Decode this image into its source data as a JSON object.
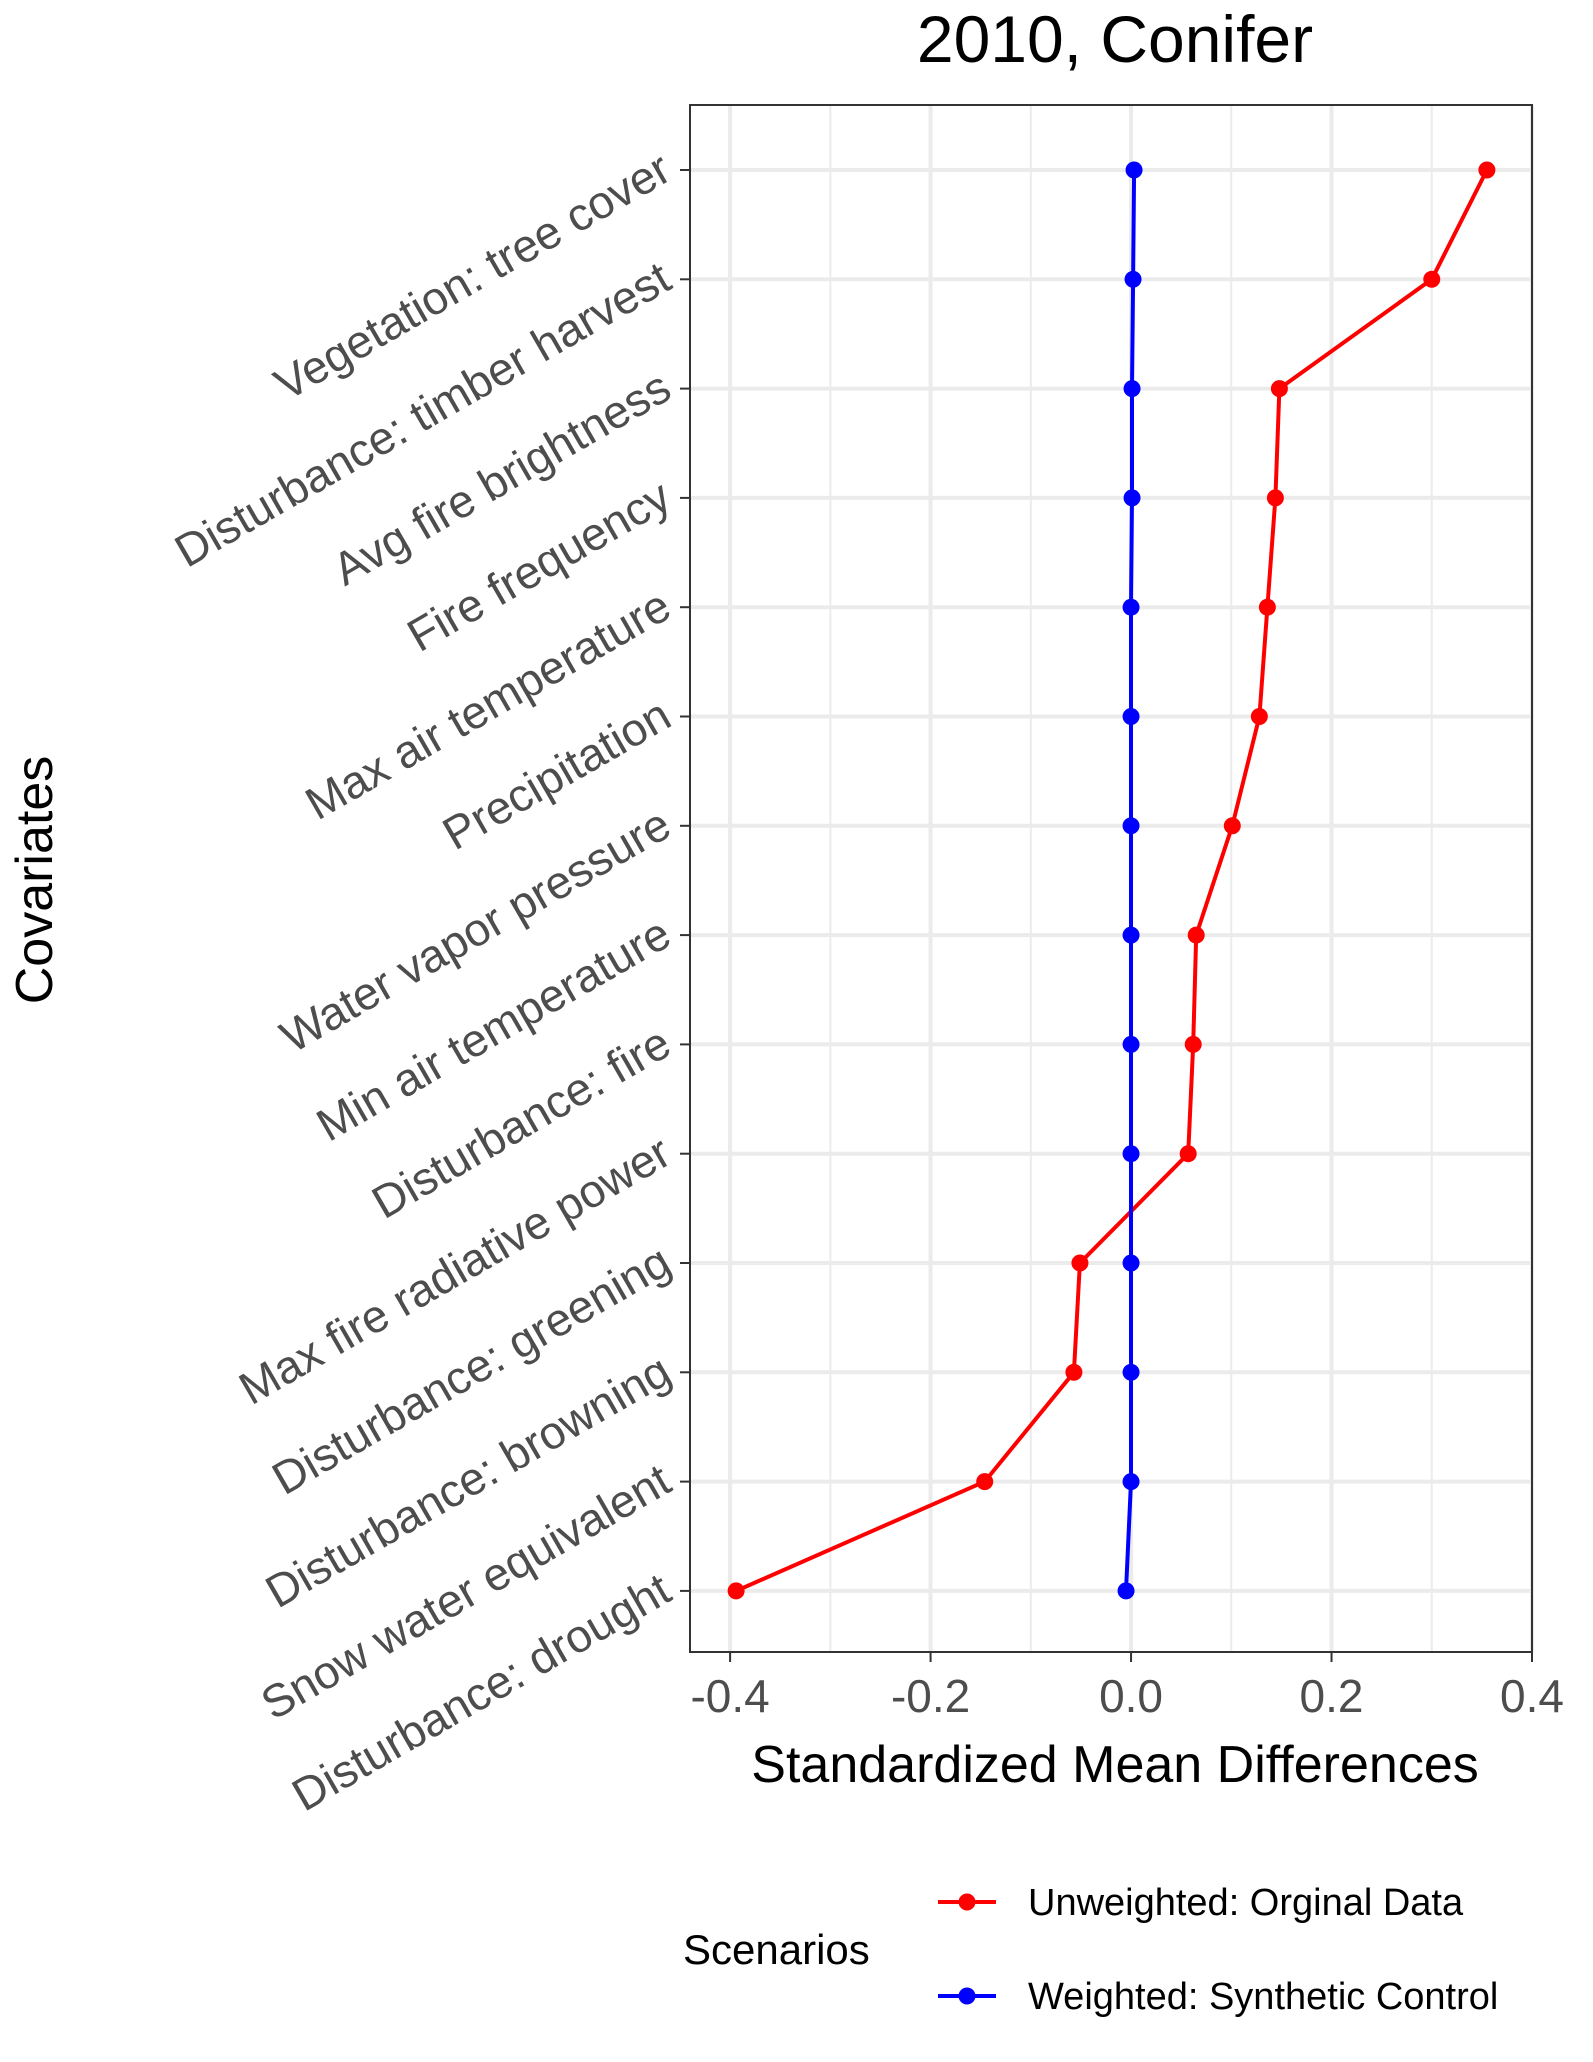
{
  "chart_data": {
    "type": "line",
    "orientation": "horizontal",
    "title": "2010, Conifer",
    "xlabel": "Standardized Mean Differences",
    "ylabel": "Covariates",
    "xlim": [
      -0.44,
      0.4
    ],
    "x_ticks": [
      -0.4,
      -0.2,
      0.0,
      0.2,
      0.4
    ],
    "x_tick_labels": [
      "-0.4",
      "-0.2",
      "0.0",
      "0.2",
      "0.4"
    ],
    "grid": true,
    "categories": [
      "Vegetation: tree cover",
      "Disturbance: timber harvest",
      "Avg fire brightness",
      "Fire frequency",
      "Max air temperature",
      "Precipitation",
      "Water vapor pressure",
      "Min air temperature",
      "Disturbance: fire",
      "Max fire radiative power",
      "Disturbance: greening",
      "Disturbance: browning",
      "Snow water equivalent",
      "Disturbance: drought"
    ],
    "series": [
      {
        "name": "Unweighted: Orginal Data",
        "color": "#FF0000",
        "values": [
          0.355,
          0.3,
          0.148,
          0.144,
          0.136,
          0.128,
          0.101,
          0.065,
          0.062,
          0.057,
          -0.051,
          -0.057,
          -0.146,
          -0.394
        ]
      },
      {
        "name": "Weighted: Synthetic Control",
        "color": "#0000FF",
        "values": [
          0.003,
          0.002,
          0.001,
          0.001,
          0.0,
          0.0,
          0.0,
          0.0,
          0.0,
          0.0,
          0.0,
          0.0,
          0.0,
          -0.005
        ]
      }
    ],
    "legend": {
      "title": "Scenarios",
      "position": "bottom"
    }
  }
}
